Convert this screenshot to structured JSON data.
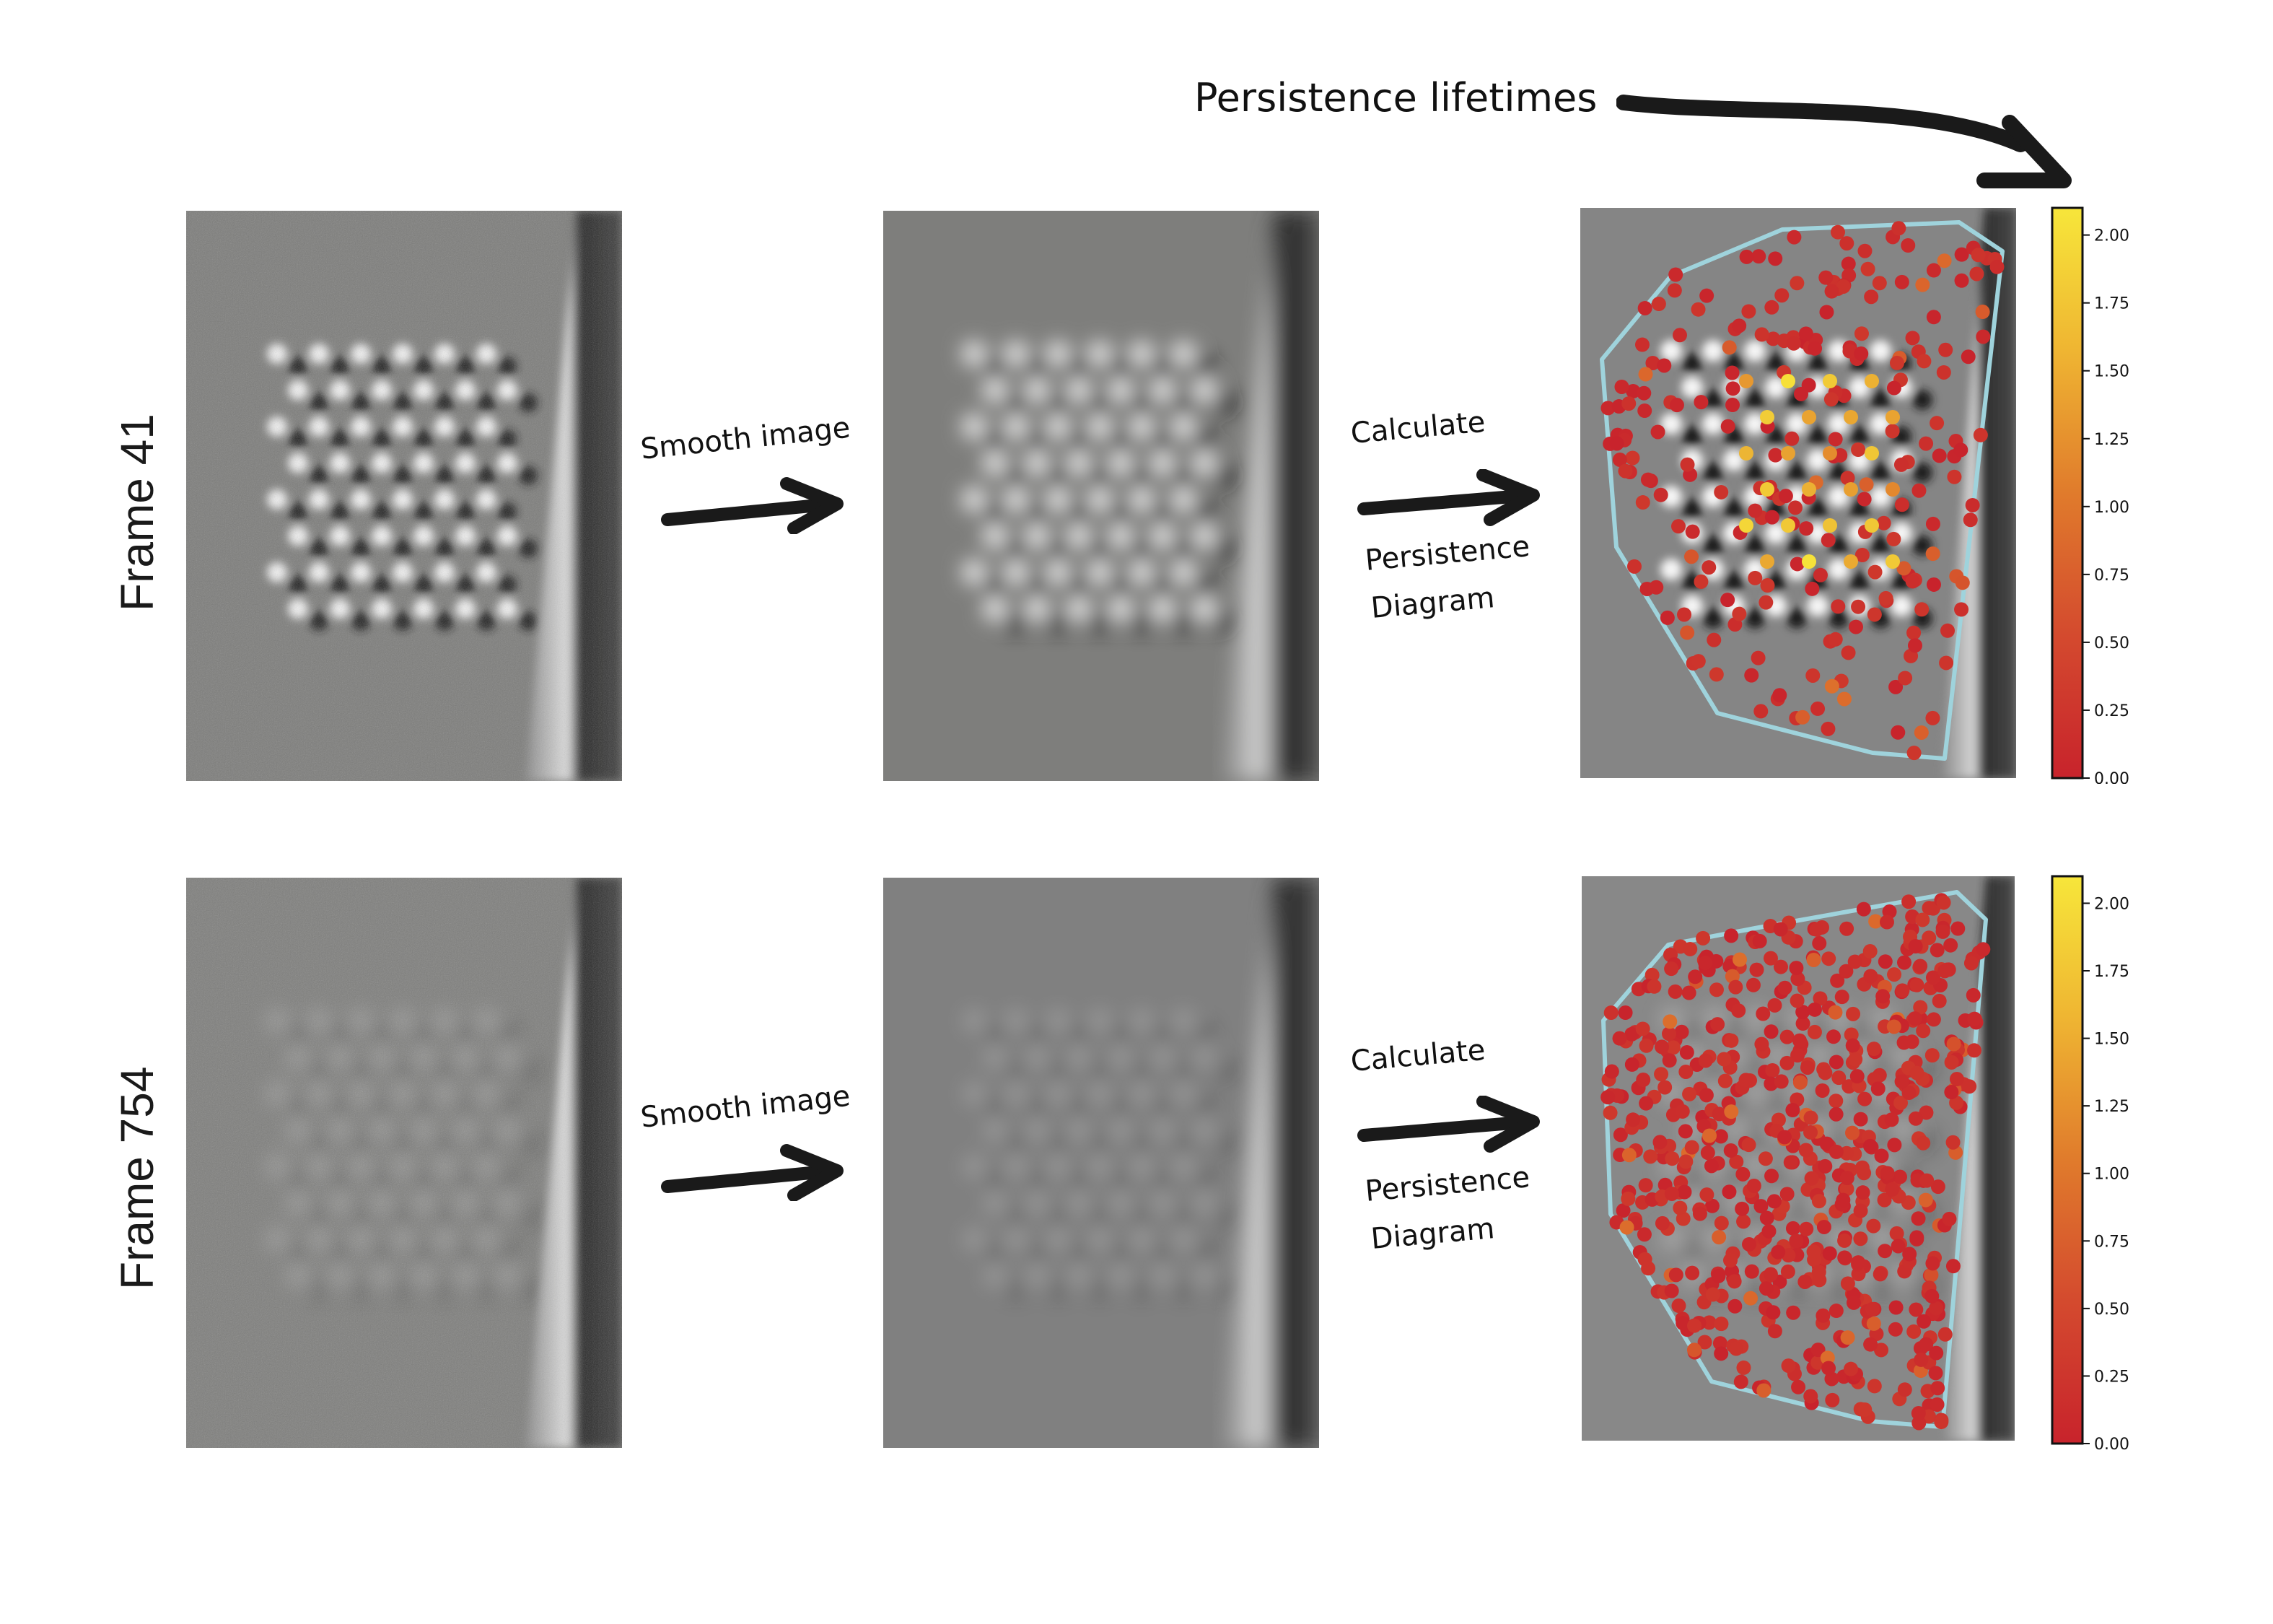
{
  "header": {
    "arrow_label": "Persistence lifetimes"
  },
  "rows": [
    {
      "frame_label": "Frame 41",
      "smooth_label": "Smooth image",
      "calc_label_1": "Calculate",
      "calc_label_2": "Persistence",
      "calc_label_3": "Diagram",
      "colorbar_ticks": [
        "0.00",
        "0.25",
        "0.50",
        "0.75",
        "1.00",
        "1.25",
        "1.50",
        "1.75",
        "2.00"
      ]
    },
    {
      "frame_label": "Frame 754",
      "smooth_label": "Smooth image",
      "calc_label_1": "Calculate",
      "calc_label_2": "Persistence",
      "calc_label_3": "Diagram",
      "colorbar_ticks": [
        "0.00",
        "0.25",
        "0.50",
        "0.75",
        "1.00",
        "1.25",
        "1.50",
        "1.75",
        "2.00"
      ]
    }
  ],
  "colors": {
    "hull_outline": "#9fd3dc",
    "colormap_low": "#c8232c",
    "colormap_mid": "#e07b2c",
    "colormap_high": "#f7e63a",
    "arrow": "#1a1a1a"
  },
  "colorbar_range": [
    0.0,
    2.1
  ]
}
